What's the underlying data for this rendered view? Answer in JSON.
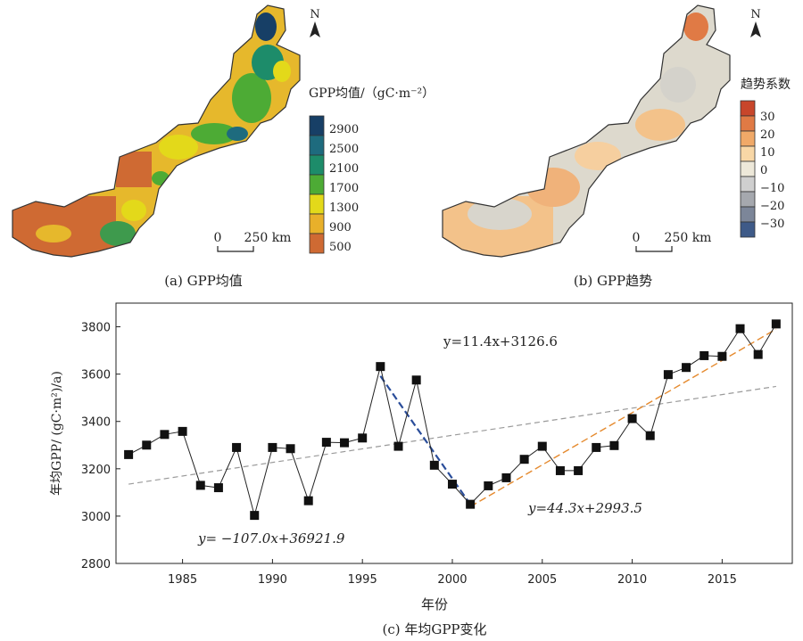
{
  "panel_a": {
    "caption": "(a) GPP均值",
    "legend_title": "GPP均值/（gC·m⁻²）",
    "legend_labels": [
      "2900",
      "2500",
      "2100",
      "1700",
      "1300",
      "900",
      "500"
    ],
    "legend_colors": [
      "#173f66",
      "#1e6b7e",
      "#1d8c6a",
      "#4dab35",
      "#e3d91a",
      "#e8b02a",
      "#cf6a33"
    ],
    "scale_zero": "0",
    "scale_label": "250 km",
    "north": "N"
  },
  "panel_b": {
    "caption": "(b) GPP趋势",
    "legend_title": "趋势系数",
    "legend_labels": [
      "30",
      "20",
      "10",
      "0",
      "−10",
      "−20",
      "−30"
    ],
    "legend_colors": [
      "#c8462b",
      "#e07a45",
      "#f0a968",
      "#f8d7a6",
      "#ede8d9",
      "#cfcfcf",
      "#a5a8ae",
      "#7c8699",
      "#3e5a88"
    ],
    "scale_zero": "0",
    "scale_label": "250 km",
    "north": "N"
  },
  "panel_c": {
    "caption": "(c) 年均GPP变化",
    "eq_overall": "y=11.4x+3126.6",
    "eq_decline": "y= −107.0x+36921.9",
    "eq_rise": "y=44.3x+2993.5",
    "eq_colors": {
      "overall": "#222222",
      "decline": "#2a4d9a",
      "rise": "#e58a2e"
    }
  },
  "chart_data": {
    "type": "line",
    "xlabel": "年份",
    "ylabel": "年均GPP/ (gC·m²)/a)",
    "xlim": [
      1981.3,
      2018.9
    ],
    "ylim": [
      2800,
      3900
    ],
    "xticks": [
      1985,
      1990,
      1995,
      2000,
      2005,
      2010,
      2015
    ],
    "yticks": [
      2800,
      3000,
      3200,
      3400,
      3600,
      3800
    ],
    "x": [
      1982,
      1983,
      1984,
      1985,
      1986,
      1987,
      1988,
      1989,
      1990,
      1991,
      1992,
      1993,
      1994,
      1995,
      1996,
      1997,
      1998,
      1999,
      2000,
      2001,
      2002,
      2003,
      2004,
      2005,
      2006,
      2007,
      2008,
      2009,
      2010,
      2011,
      2012,
      2013,
      2014,
      2015,
      2016,
      2017,
      2018
    ],
    "y": [
      3260,
      3300,
      3345,
      3358,
      3130,
      3120,
      3290,
      3003,
      3290,
      3285,
      3065,
      3312,
      3310,
      3330,
      3632,
      3295,
      3575,
      3215,
      3135,
      3050,
      3128,
      3162,
      3240,
      3295,
      3192,
      3192,
      3290,
      3298,
      3412,
      3340,
      3598,
      3628,
      3678,
      3675,
      3792,
      3683,
      3812
    ],
    "trend_overall": {
      "x": [
        1982,
        2018
      ],
      "y": [
        3135,
        3548
      ]
    },
    "trend_decline": {
      "x": [
        1996,
        2001
      ],
      "y": [
        3592,
        3050
      ]
    },
    "trend_rise": {
      "x": [
        2001,
        2018
      ],
      "y": [
        3040,
        3790
      ]
    }
  }
}
